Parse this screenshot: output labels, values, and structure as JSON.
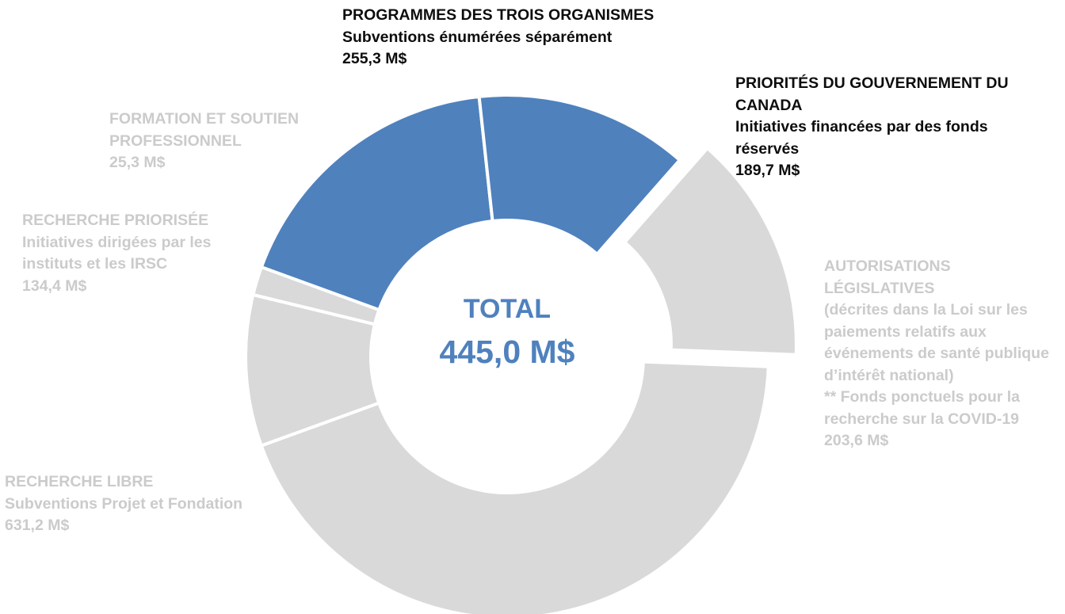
{
  "chart_data": {
    "type": "pie",
    "style": "donut",
    "center": {
      "title": "TOTAL",
      "value": "445,0 M$"
    },
    "slices": [
      {
        "label": "PROGRAMMES DES TROIS ORGANISMES",
        "desc": "Subventions énumérées séparément",
        "amount": "255,3 M$",
        "value": 255.3,
        "color": "#4f81bd"
      },
      {
        "label": "PRIORITÉS DU GOUVERNEMENT DU CANADA",
        "desc": "Initiatives financées par des fonds réservés",
        "amount": "189,7 M$",
        "value": 189.7,
        "color": "#4f81bd"
      },
      {
        "label": "AUTORISATIONS LÉGISLATIVES",
        "desc": "(décrites dans la Loi sur les paiements relatifs aux événements de santé publique d’intérêt national)",
        "note": "** Fonds ponctuels pour la recherche sur la COVID-19",
        "amount": "203,6 M$",
        "value": 203.6,
        "color": "#d9d9d9",
        "exploded": true
      },
      {
        "label": "RECHERCHE LIBRE",
        "desc": "Subventions Projet et Fondation",
        "amount": "631,2 M$",
        "value": 631.2,
        "color": "#d9d9d9"
      },
      {
        "label": "RECHERCHE PRIORISÉE",
        "desc": "Initiatives dirigées par les instituts et les IRSC",
        "amount": "134,4 M$",
        "value": 134.4,
        "color": "#d9d9d9"
      },
      {
        "label": "FORMATION ET SOUTIEN PROFESSIONNEL",
        "desc": "",
        "amount": "25,3 M$",
        "value": 25.3,
        "color": "#d9d9d9"
      }
    ]
  }
}
